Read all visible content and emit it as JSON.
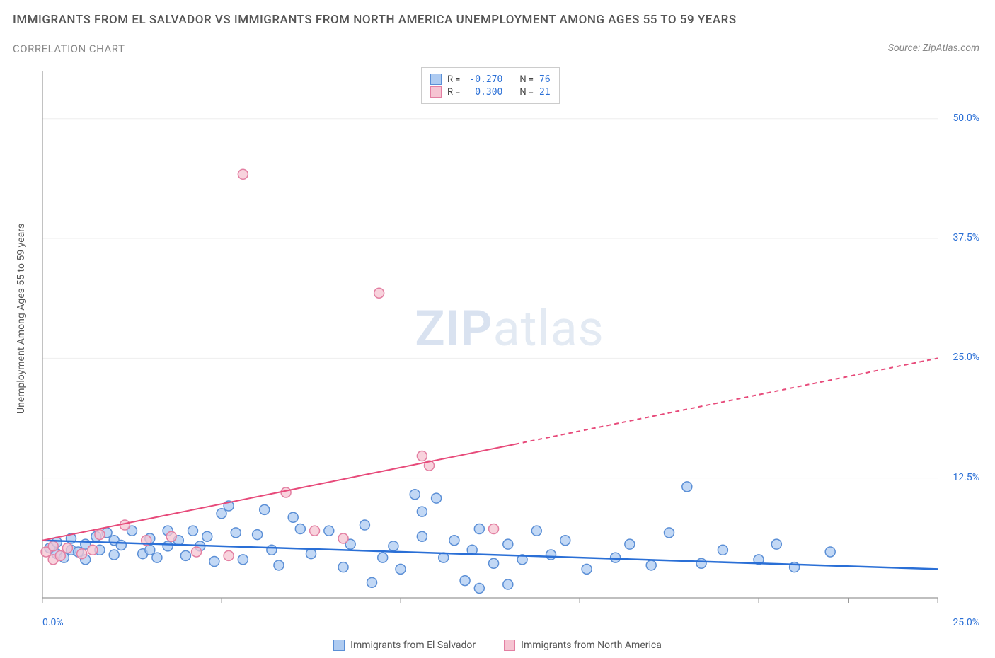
{
  "title": "IMMIGRANTS FROM EL SALVADOR VS IMMIGRANTS FROM NORTH AMERICA UNEMPLOYMENT AMONG AGES 55 TO 59 YEARS",
  "subtitle": "CORRELATION CHART",
  "source": "Source: ZipAtlas.com",
  "y_axis_label": "Unemployment Among Ages 55 to 59 years",
  "watermark_prefix": "ZIP",
  "watermark_suffix": "atlas",
  "chart": {
    "type": "scatter",
    "xlim": [
      0,
      25
    ],
    "ylim": [
      0,
      55
    ],
    "x_ticks": [
      0,
      2.5,
      5,
      7.5,
      10,
      12.5,
      15,
      17.5,
      20,
      22.5,
      25
    ],
    "y_ticks": [
      12.5,
      25,
      37.5,
      50
    ],
    "y_tick_labels": [
      "12.5%",
      "25.0%",
      "37.5%",
      "50.0%"
    ],
    "x_origin_label": "0.0%",
    "x_max_label": "25.0%",
    "background_color": "#ffffff",
    "grid_color": "#eeeeee",
    "axis_color": "#999999",
    "tick_label_color": "#2a6fd6",
    "marker_radius": 7,
    "marker_stroke_width": 1.5,
    "series": [
      {
        "id": "el_salvador",
        "label": "Immigrants from El Salvador",
        "fill": "#aecbf1",
        "stroke": "#5b8fd6",
        "trend": {
          "x1": 0,
          "y1": 6.0,
          "x2": 25,
          "y2": 3.0,
          "color": "#2a6fd6",
          "width": 2.5,
          "dash": null,
          "dash_from_x": null
        },
        "R": "-0.270",
        "N": "76",
        "points": [
          [
            0.2,
            5.2
          ],
          [
            0.4,
            4.6
          ],
          [
            0.4,
            5.8
          ],
          [
            0.6,
            4.2
          ],
          [
            0.8,
            5.0
          ],
          [
            0.8,
            6.2
          ],
          [
            1.0,
            4.8
          ],
          [
            1.2,
            5.6
          ],
          [
            1.2,
            4.0
          ],
          [
            1.5,
            6.4
          ],
          [
            1.6,
            5.0
          ],
          [
            1.8,
            6.8
          ],
          [
            2.0,
            4.5
          ],
          [
            2.0,
            6.0
          ],
          [
            2.2,
            5.5
          ],
          [
            2.5,
            7.0
          ],
          [
            2.8,
            4.6
          ],
          [
            3.0,
            6.2
          ],
          [
            3.0,
            5.0
          ],
          [
            3.2,
            4.2
          ],
          [
            3.5,
            7.0
          ],
          [
            3.5,
            5.4
          ],
          [
            3.8,
            6.0
          ],
          [
            4.0,
            4.4
          ],
          [
            4.2,
            7.0
          ],
          [
            4.4,
            5.4
          ],
          [
            4.6,
            6.4
          ],
          [
            4.8,
            3.8
          ],
          [
            5.0,
            8.8
          ],
          [
            5.2,
            9.6
          ],
          [
            5.4,
            6.8
          ],
          [
            5.6,
            4.0
          ],
          [
            6.0,
            6.6
          ],
          [
            6.2,
            9.2
          ],
          [
            6.4,
            5.0
          ],
          [
            6.6,
            3.4
          ],
          [
            7.0,
            8.4
          ],
          [
            7.2,
            7.2
          ],
          [
            7.5,
            4.6
          ],
          [
            8.0,
            7.0
          ],
          [
            8.4,
            3.2
          ],
          [
            8.6,
            5.6
          ],
          [
            9.0,
            7.6
          ],
          [
            9.2,
            1.6
          ],
          [
            9.5,
            4.2
          ],
          [
            9.8,
            5.4
          ],
          [
            10.0,
            3.0
          ],
          [
            10.4,
            10.8
          ],
          [
            10.6,
            6.4
          ],
          [
            10.6,
            9.0
          ],
          [
            11.0,
            10.4
          ],
          [
            11.2,
            4.2
          ],
          [
            11.5,
            6.0
          ],
          [
            11.8,
            1.8
          ],
          [
            12.0,
            5.0
          ],
          [
            12.2,
            7.2
          ],
          [
            12.2,
            1.0
          ],
          [
            12.6,
            3.6
          ],
          [
            13.0,
            5.6
          ],
          [
            13.0,
            1.4
          ],
          [
            13.4,
            4.0
          ],
          [
            13.8,
            7.0
          ],
          [
            14.2,
            4.5
          ],
          [
            14.6,
            6.0
          ],
          [
            15.2,
            3.0
          ],
          [
            16.0,
            4.2
          ],
          [
            16.4,
            5.6
          ],
          [
            17.0,
            3.4
          ],
          [
            17.5,
            6.8
          ],
          [
            18.0,
            11.6
          ],
          [
            18.4,
            3.6
          ],
          [
            19.0,
            5.0
          ],
          [
            20.0,
            4.0
          ],
          [
            20.5,
            5.6
          ],
          [
            21.0,
            3.2
          ],
          [
            22.0,
            4.8
          ]
        ]
      },
      {
        "id": "north_america",
        "label": "Immigrants from North America",
        "fill": "#f6c4d2",
        "stroke": "#e37fa2",
        "trend": {
          "x1": 0,
          "y1": 6.0,
          "x2": 25,
          "y2": 25.0,
          "color": "#e74a7a",
          "width": 2,
          "dash": "6,5",
          "dash_from_x": 13.2
        },
        "R": "0.300",
        "N": "21",
        "points": [
          [
            0.1,
            4.8
          ],
          [
            0.3,
            4.0
          ],
          [
            0.3,
            5.4
          ],
          [
            0.5,
            4.4
          ],
          [
            0.7,
            5.2
          ],
          [
            1.1,
            4.6
          ],
          [
            1.4,
            5.0
          ],
          [
            1.6,
            6.6
          ],
          [
            2.3,
            7.6
          ],
          [
            2.9,
            6.0
          ],
          [
            3.6,
            6.4
          ],
          [
            4.3,
            4.8
          ],
          [
            5.2,
            4.4
          ],
          [
            5.6,
            44.2
          ],
          [
            6.8,
            11.0
          ],
          [
            7.6,
            7.0
          ],
          [
            8.4,
            6.2
          ],
          [
            9.4,
            31.8
          ],
          [
            10.6,
            14.8
          ],
          [
            10.8,
            13.8
          ],
          [
            12.6,
            7.2
          ]
        ]
      }
    ],
    "legend_box": {
      "rows": [
        {
          "swatch_fill": "#aecbf1",
          "swatch_stroke": "#5b8fd6",
          "r_label": "R =",
          "r_val": "-0.270",
          "n_label": "N =",
          "n_val": "76"
        },
        {
          "swatch_fill": "#f6c4d2",
          "swatch_stroke": "#e37fa2",
          "r_label": "R =",
          "r_val": "0.300",
          "n_label": "N =",
          "n_val": "21"
        }
      ]
    }
  }
}
